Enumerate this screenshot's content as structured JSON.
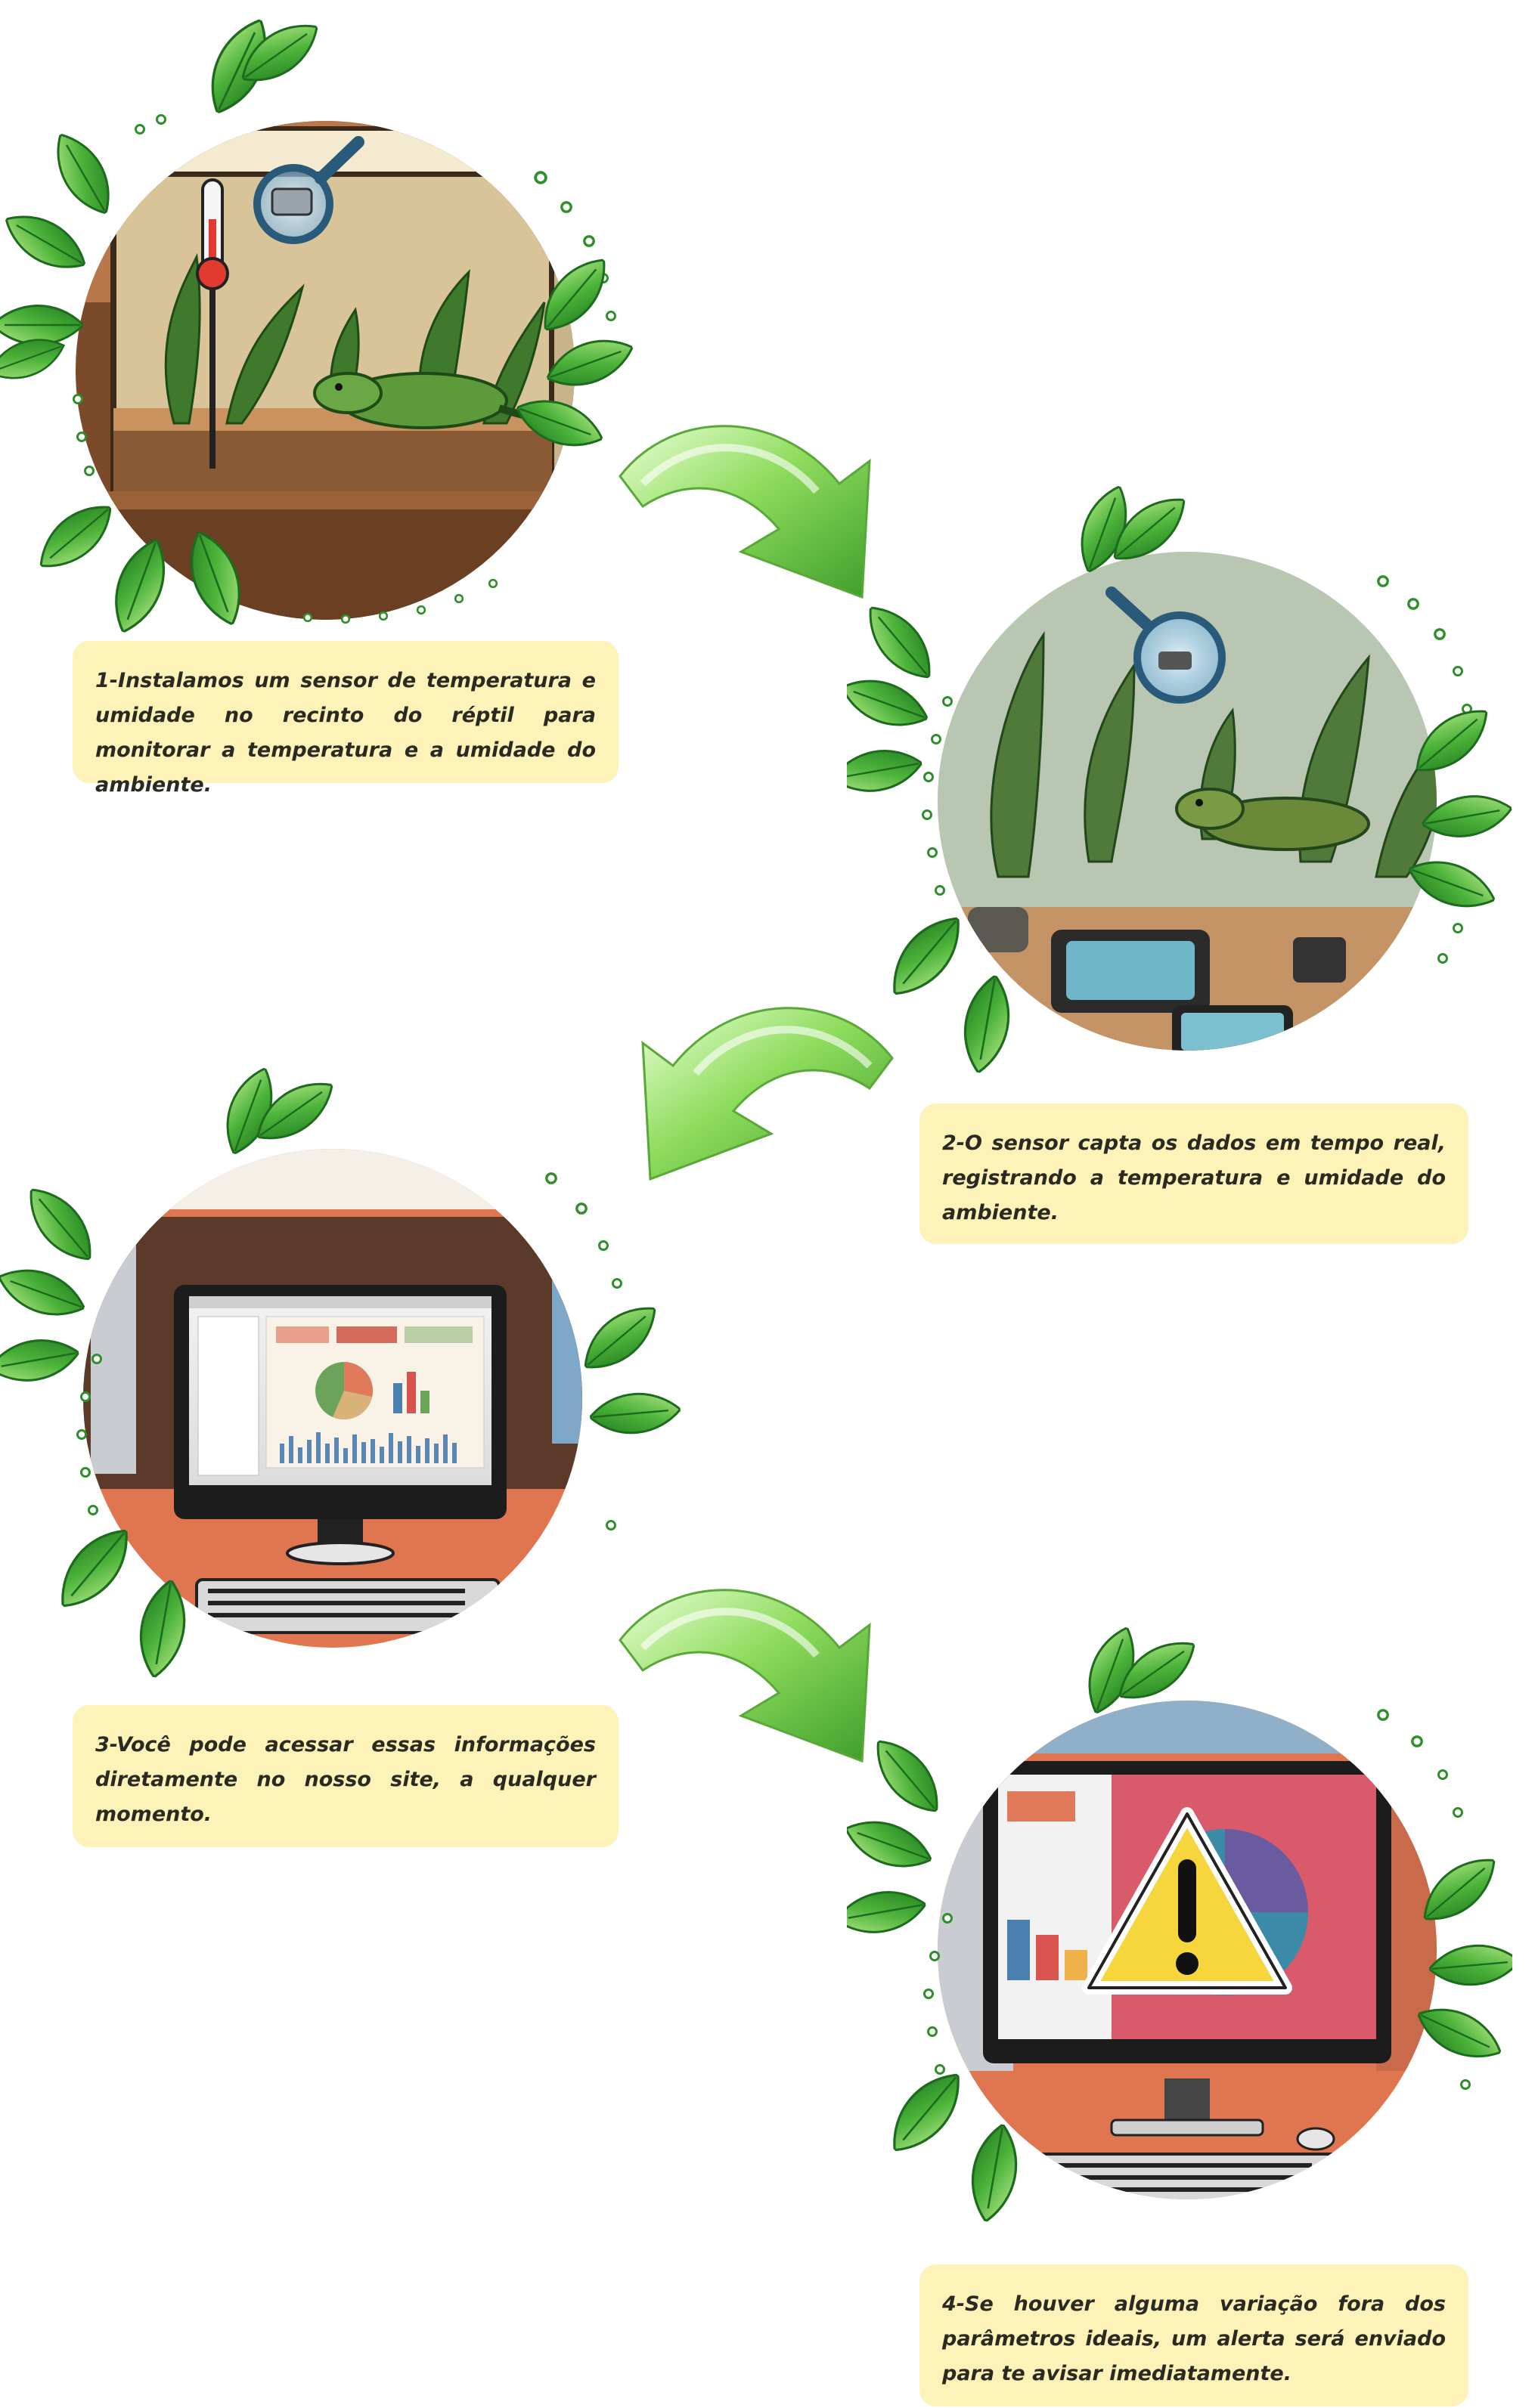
{
  "steps": [
    {
      "caption": "1-Instalamos um sensor de temperatura e umidade no recinto do réptil para monitorar a temperatura e a umidade do ambiente.",
      "scene": "terrarium-with-sensor"
    },
    {
      "caption": "2-O sensor capta os dados em tempo real, registrando a temperatura e umidade do ambiente.",
      "scene": "sensor-capturing-data"
    },
    {
      "caption": "3-Você pode acessar essas informações diretamente no nosso site, a qualquer momento.",
      "scene": "website-dashboard"
    },
    {
      "caption": "4-Se houver alguma variação fora dos parâmetros ideais, um alerta será enviado para te avisar imediatamente.",
      "scene": "alert-warning"
    }
  ],
  "colors": {
    "caption_bg": "#fdf2b8",
    "leaf_green": "#3fa832",
    "arrow_green": "#7ed957",
    "dot_green": "#2f8f2a",
    "warning_yellow": "#f6d53d"
  },
  "icons": [
    "thermometer-icon",
    "magnifier-icon",
    "warning-icon",
    "curved-arrow-icon",
    "leaf-wreath-icon"
  ]
}
